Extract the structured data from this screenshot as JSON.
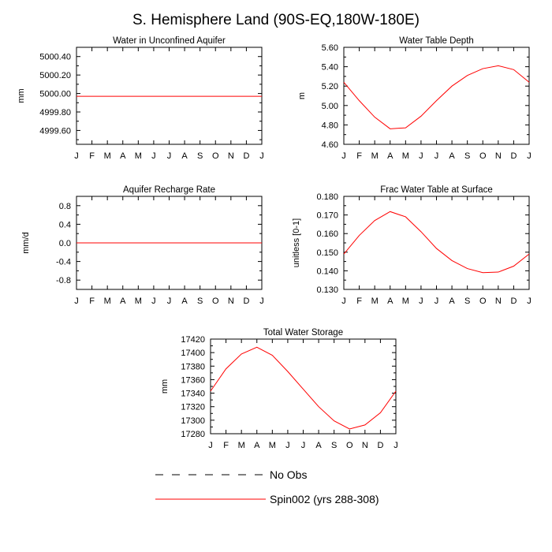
{
  "title": "S. Hemisphere Land (90S-EQ,180W-180E)",
  "months": [
    "J",
    "F",
    "M",
    "A",
    "M",
    "J",
    "J",
    "A",
    "S",
    "O",
    "N",
    "D",
    "J"
  ],
  "colors": {
    "series": "#ff0000",
    "axes": "#000000",
    "background": "#ffffff"
  },
  "legend": {
    "placement": "bottom",
    "entries": [
      {
        "label": "No Obs",
        "style": "dashed",
        "color": "#000000"
      },
      {
        "label": "Spin002 (yrs 288-308)",
        "style": "solid",
        "color": "#ff0000"
      }
    ]
  },
  "chart_data": [
    {
      "type": "line",
      "title": "Water in Unconfined Aquifer",
      "ylabel": "mm",
      "ylim": [
        4999.45,
        5000.5
      ],
      "yticks": [
        4999.6,
        4999.8,
        5000.0,
        5000.2,
        5000.4
      ],
      "yticklabels": [
        "4999.60",
        "4999.80",
        "5000.00",
        "5000.20",
        "5000.40"
      ],
      "yminor": [
        4999.5,
        4999.7,
        4999.9,
        5000.1,
        5000.3,
        5000.5
      ],
      "series": [
        {
          "values": [
            4999.97,
            4999.97,
            4999.97,
            4999.97,
            4999.97,
            4999.97,
            4999.97,
            4999.97,
            4999.97,
            4999.97,
            4999.97,
            4999.97,
            4999.97
          ]
        }
      ]
    },
    {
      "type": "line",
      "title": "Water Table Depth",
      "ylabel": "m",
      "ylim": [
        4.6,
        5.6
      ],
      "yticks": [
        4.6,
        4.8,
        5.0,
        5.2,
        5.4,
        5.6
      ],
      "yticklabels": [
        "4.60",
        "4.80",
        "5.00",
        "5.20",
        "5.40",
        "5.60"
      ],
      "yminor": [
        4.7,
        4.9,
        5.1,
        5.3,
        5.5
      ],
      "series": [
        {
          "values": [
            5.24,
            5.05,
            4.88,
            4.76,
            4.77,
            4.89,
            5.05,
            5.2,
            5.31,
            5.38,
            5.41,
            5.37,
            5.24
          ]
        }
      ]
    },
    {
      "type": "line",
      "title": "Aquifer Recharge Rate",
      "ylabel": "mm/d",
      "ylim": [
        -1.0,
        1.0
      ],
      "yticks": [
        -0.8,
        -0.4,
        0.0,
        0.4,
        0.8
      ],
      "yticklabels": [
        "-0.8",
        "-0.4",
        "0.0",
        "0.4",
        "0.8"
      ],
      "yminor": [
        -0.6,
        -0.2,
        0.2,
        0.6
      ],
      "series": [
        {
          "values": [
            0,
            0,
            0,
            0,
            0,
            0,
            0,
            0,
            0,
            0,
            0,
            0,
            0
          ]
        }
      ]
    },
    {
      "type": "line",
      "title": "Frac Water Table at Surface",
      "ylabel": "unitless [0-1]",
      "ylim": [
        0.13,
        0.18
      ],
      "yticks": [
        0.13,
        0.14,
        0.15,
        0.16,
        0.17,
        0.18
      ],
      "yticklabels": [
        "0.130",
        "0.140",
        "0.150",
        "0.160",
        "0.170",
        "0.180"
      ],
      "yminor": [
        0.135,
        0.145,
        0.155,
        0.165,
        0.175
      ],
      "series": [
        {
          "values": [
            0.149,
            0.159,
            0.167,
            0.1718,
            0.169,
            0.161,
            0.152,
            0.1455,
            0.1412,
            0.139,
            0.1393,
            0.1425,
            0.149
          ]
        }
      ]
    },
    {
      "type": "line",
      "title": "Total Water Storage",
      "ylabel": "mm",
      "ylim": [
        17280,
        17420
      ],
      "yticks": [
        17280,
        17300,
        17320,
        17340,
        17360,
        17380,
        17400,
        17420
      ],
      "yticklabels": [
        "17280",
        "17300",
        "17320",
        "17340",
        "17360",
        "17380",
        "17400",
        "17420"
      ],
      "yminor": [
        17290,
        17310,
        17330,
        17350,
        17370,
        17390,
        17410
      ],
      "series": [
        {
          "values": [
            17343,
            17376,
            17398,
            17408,
            17396,
            17372,
            17346,
            17320,
            17299,
            17287,
            17293,
            17311,
            17343
          ]
        }
      ]
    }
  ]
}
